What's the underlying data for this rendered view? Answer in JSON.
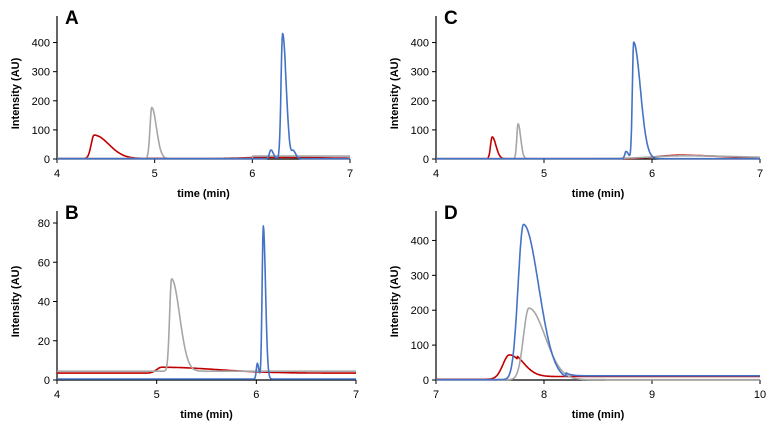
{
  "chart_data": [
    {
      "type": "line",
      "panel_label": "A",
      "xlabel": "time (min)",
      "ylabel": "Intensity (AU)",
      "xlim": [
        4,
        7
      ],
      "ylim": [
        0,
        450
      ],
      "xticks": [
        4,
        5,
        6,
        7
      ],
      "yticks": [
        0,
        100,
        200,
        300,
        400
      ],
      "grid": false,
      "legend": "none",
      "series": [
        {
          "color": "#c00000",
          "baseline": 2,
          "peaks": [
            {
              "x": 4.38,
              "y": 80,
              "w": 0.03,
              "tail": 0.12
            },
            {
              "x": 6.2,
              "y": 4,
              "w": 0.25,
              "tail": 0.2
            }
          ]
        },
        {
          "color": "#a6a6a6",
          "baseline": 2,
          "peaks": [
            {
              "x": 4.97,
              "y": 175,
              "w": 0.018,
              "tail": 0.03
            }
          ],
          "step_after": {
            "x": 6.0,
            "y": 10
          }
        },
        {
          "color": "#4472c4",
          "baseline": 1,
          "peaks": [
            {
              "x": 6.31,
              "y": 430,
              "w": 0.016,
              "tail": 0.02
            },
            {
              "x": 6.19,
              "y": 30,
              "w": 0.015,
              "tail": 0.01
            },
            {
              "x": 6.42,
              "y": 25,
              "w": 0.015,
              "tail": 0.01
            }
          ]
        }
      ]
    },
    {
      "type": "line",
      "panel_label": "B",
      "xlabel": "time (min)",
      "ylabel": "Intensity (AU)",
      "xlim": [
        4,
        7
      ],
      "ylim": [
        0,
        80
      ],
      "xticks": [
        4,
        5,
        6,
        7
      ],
      "yticks": [
        0,
        20,
        40,
        60,
        80
      ],
      "grid": false,
      "legend": "none",
      "series": [
        {
          "color": "#c00000",
          "baseline": 3.5,
          "peaks": [
            {
              "x": 5.05,
              "y": 3,
              "w": 0.05,
              "tail": 0.5
            }
          ]
        },
        {
          "color": "#a6a6a6",
          "baseline": 4.5,
          "peaks": [
            {
              "x": 5.15,
              "y": 47,
              "w": 0.02,
              "tail": 0.06
            }
          ]
        },
        {
          "color": "#4472c4",
          "baseline": 0.5,
          "peaks": [
            {
              "x": 6.07,
              "y": 78,
              "w": 0.012,
              "tail": 0.01
            },
            {
              "x": 6.01,
              "y": 8,
              "w": 0.01,
              "tail": 0.005
            }
          ]
        }
      ]
    },
    {
      "type": "line",
      "panel_label": "C",
      "xlabel": "time (min)",
      "ylabel": "Intensity (AU)",
      "xlim": [
        4,
        7
      ],
      "ylim": [
        0,
        450
      ],
      "xticks": [
        4,
        5,
        6,
        7
      ],
      "yticks": [
        0,
        100,
        200,
        300,
        400
      ],
      "grid": false,
      "legend": "none",
      "series": [
        {
          "color": "#c00000",
          "baseline": 1,
          "peaks": [
            {
              "x": 4.52,
              "y": 75,
              "w": 0.015,
              "tail": 0.02
            },
            {
              "x": 6.25,
              "y": 12,
              "w": 0.2,
              "tail": 0.2
            }
          ]
        },
        {
          "color": "#a6a6a6",
          "baseline": 1,
          "peaks": [
            {
              "x": 4.76,
              "y": 120,
              "w": 0.012,
              "tail": 0.012
            },
            {
              "x": 6.3,
              "y": 10,
              "w": 0.3,
              "tail": 0.3
            }
          ]
        },
        {
          "color": "#4472c4",
          "baseline": 1,
          "peaks": [
            {
              "x": 5.83,
              "y": 400,
              "w": 0.012,
              "tail": 0.05
            },
            {
              "x": 5.76,
              "y": 25,
              "w": 0.012,
              "tail": 0.01
            }
          ]
        }
      ]
    },
    {
      "type": "line",
      "panel_label": "D",
      "xlabel": "time (min)",
      "ylabel": "Intensity (AU)",
      "xlim": [
        7,
        10
      ],
      "ylim": [
        0,
        450
      ],
      "xticks": [
        7,
        8,
        9,
        10
      ],
      "yticks": [
        0,
        100,
        200,
        300,
        400
      ],
      "grid": false,
      "legend": "none",
      "series": [
        {
          "color": "#c00000",
          "baseline": 2,
          "peaks": [
            {
              "x": 7.68,
              "y": 70,
              "w": 0.06,
              "tail": 0.06
            }
          ],
          "tail_level": {
            "from": 7.75,
            "y": 10
          }
        },
        {
          "color": "#a6a6a6",
          "baseline": 1,
          "peaks": [
            {
              "x": 7.86,
              "y": 205,
              "w": 0.05,
              "tail": 0.1
            }
          ]
        },
        {
          "color": "#4472c4",
          "baseline": 1,
          "peaks": [
            {
              "x": 7.81,
              "y": 445,
              "w": 0.05,
              "tail": 0.09
            }
          ],
          "tail_level": {
            "from": 8.2,
            "y": 12
          }
        }
      ]
    }
  ]
}
